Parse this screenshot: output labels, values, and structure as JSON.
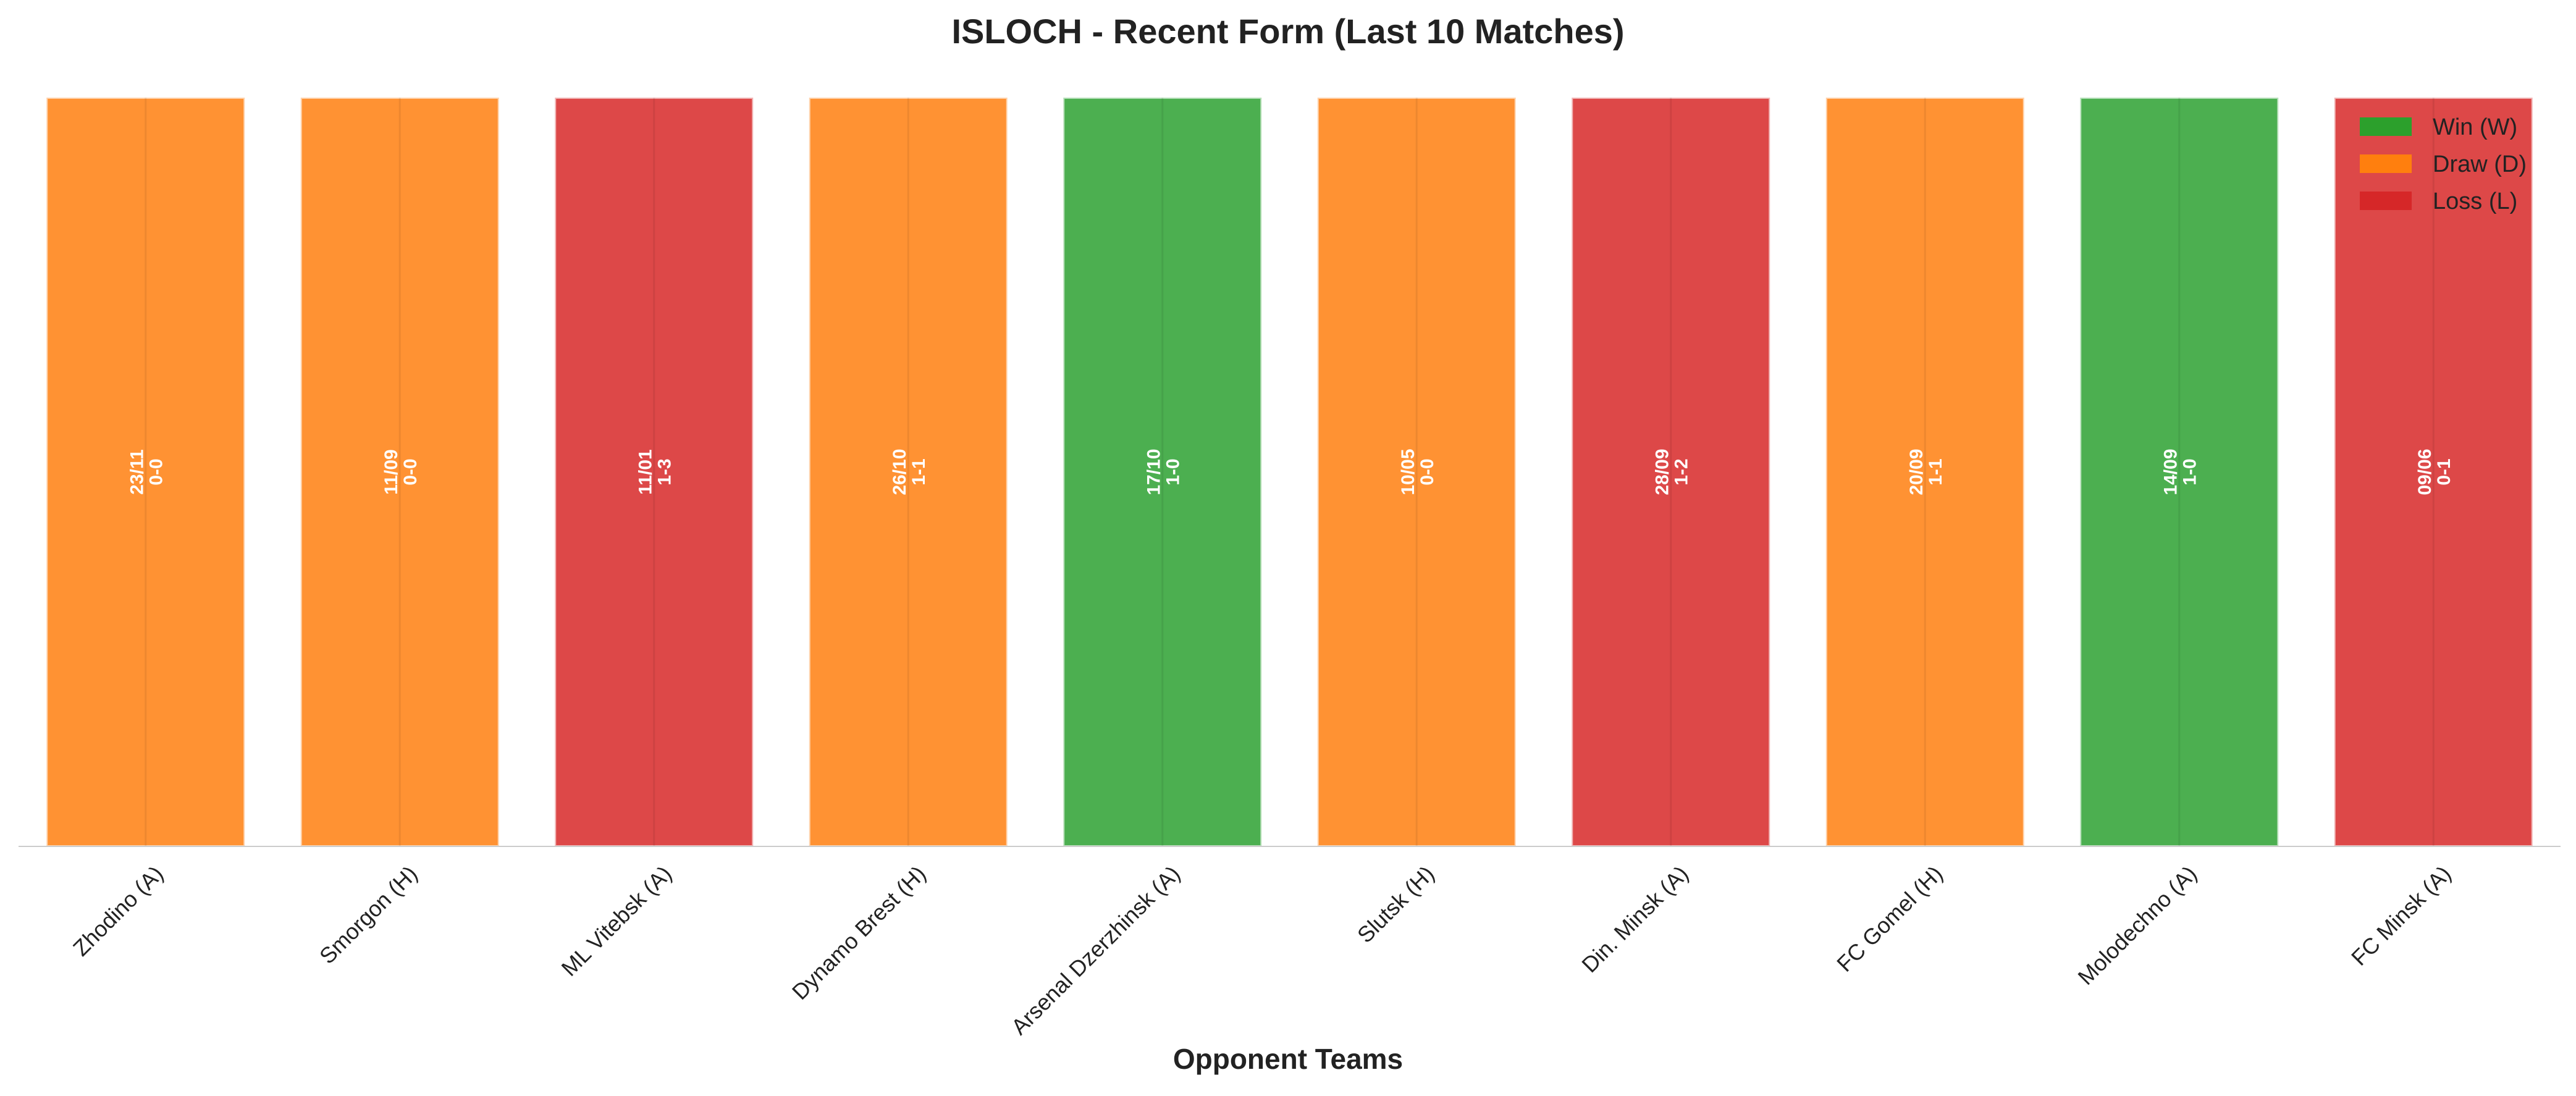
{
  "chart_data": {
    "type": "bar",
    "title": "ISLOCH - Recent Form (Last 10 Matches)",
    "xlabel": "Opponent Teams",
    "ylabel": "",
    "categories": [
      "Zhodino (A)",
      "Smorgon (H)",
      "ML Vitebsk (A)",
      "Dynamo Brest (H)",
      "Arsenal Dzerzhinsk (A)",
      "Slutsk (H)",
      "Din. Minsk (A)",
      "FC Gomel (H)",
      "Molodechno (A)",
      "FC Minsk (A)"
    ],
    "values": [
      1,
      1,
      1,
      1,
      1,
      1,
      1,
      1,
      1,
      1
    ],
    "results": [
      "D",
      "D",
      "L",
      "D",
      "W",
      "D",
      "L",
      "D",
      "W",
      "L"
    ],
    "dates": [
      "23/11",
      "11/09",
      "11/01",
      "26/10",
      "17/10",
      "10/05",
      "28/09",
      "20/09",
      "14/09",
      "09/06"
    ],
    "scores": [
      "0-0",
      "0-0",
      "1-3",
      "1-1",
      "1-0",
      "0-0",
      "1-2",
      "1-1",
      "1-0",
      "0-1"
    ],
    "ylim": [
      0,
      1
    ],
    "grid": false,
    "legend_position": "top-right",
    "legend": [
      {
        "key": "W",
        "label": "Win (W)",
        "color": "#2ca02c"
      },
      {
        "key": "D",
        "label": "Draw (D)",
        "color": "#ff7f0e"
      },
      {
        "key": "L",
        "label": "Loss (L)",
        "color": "#d62728"
      }
    ],
    "bar_colors": {
      "W": "#4caf50",
      "D": "#ff9233",
      "L": "#dd4848"
    }
  }
}
